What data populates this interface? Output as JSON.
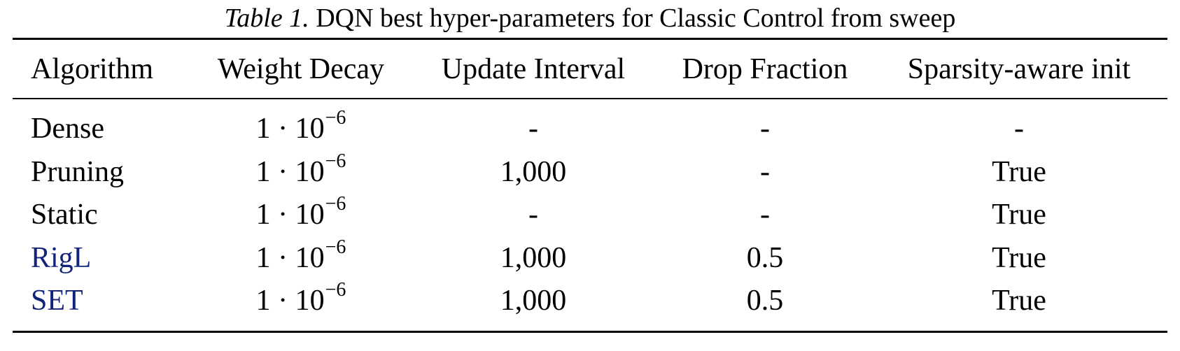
{
  "caption": {
    "label": "Table 1.",
    "text": "DQN best hyper-parameters for Classic Control from sweep"
  },
  "headers": [
    "Algorithm",
    "Weight Decay",
    "Update Interval",
    "Drop Fraction",
    "Sparsity-aware init"
  ],
  "rows": [
    {
      "algorithm": "Dense",
      "wd_mantissa": "1 · 10",
      "wd_exp": "−6",
      "update_interval": "-",
      "drop_fraction": "-",
      "sparsity_init": "-"
    },
    {
      "algorithm": "Pruning",
      "wd_mantissa": "1 · 10",
      "wd_exp": "−6",
      "update_interval": "1,000",
      "drop_fraction": "-",
      "sparsity_init": "True"
    },
    {
      "algorithm": "Static",
      "wd_mantissa": "1 · 10",
      "wd_exp": "−6",
      "update_interval": "-",
      "drop_fraction": "-",
      "sparsity_init": "True"
    },
    {
      "algorithm": "RigL",
      "wd_mantissa": "1 · 10",
      "wd_exp": "−6",
      "update_interval": "1,000",
      "drop_fraction": "0.5",
      "sparsity_init": "True"
    },
    {
      "algorithm": "SET",
      "wd_mantissa": "1 · 10",
      "wd_exp": "−6",
      "update_interval": "1,000",
      "drop_fraction": "0.5",
      "sparsity_init": "True"
    }
  ],
  "colors": {
    "link": "#12237a",
    "text": "#000000"
  }
}
